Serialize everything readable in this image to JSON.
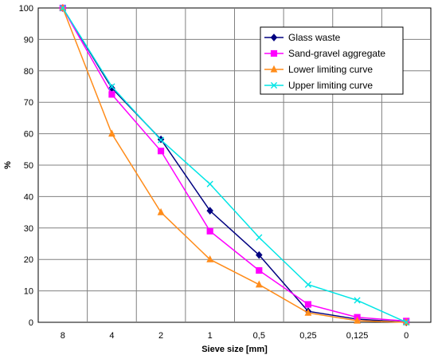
{
  "chart_data": {
    "type": "line",
    "title": "",
    "xlabel": "Sieve size [mm]",
    "ylabel": "%",
    "categories": [
      "8",
      "4",
      "2",
      "1",
      "0,5",
      "0,25",
      "0,125",
      "0"
    ],
    "ylim": [
      0,
      100
    ],
    "yticks": [
      0,
      10,
      20,
      30,
      40,
      50,
      60,
      70,
      80,
      90,
      100
    ],
    "grid": true,
    "legend_position": "top-right",
    "series": [
      {
        "name": "Glass waste",
        "color": "#000080",
        "marker": "diamond",
        "values": [
          100,
          74.5,
          58.2,
          35.5,
          21.4,
          3.5,
          1.0,
          0
        ]
      },
      {
        "name": "Sand-gravel aggregate",
        "color": "#FF00FF",
        "marker": "square",
        "values": [
          100,
          72.5,
          54.5,
          29.0,
          16.5,
          5.7,
          1.6,
          0.4
        ]
      },
      {
        "name": "Lower limiting curve",
        "color": "#FF8C1A",
        "marker": "triangle",
        "values": [
          100,
          60,
          35,
          20,
          12,
          3,
          0.5,
          0
        ]
      },
      {
        "name": "Upper limiting curve",
        "color": "#00E5E5",
        "marker": "x",
        "values": [
          100,
          75,
          58,
          44,
          27,
          12,
          7,
          0
        ]
      }
    ]
  }
}
